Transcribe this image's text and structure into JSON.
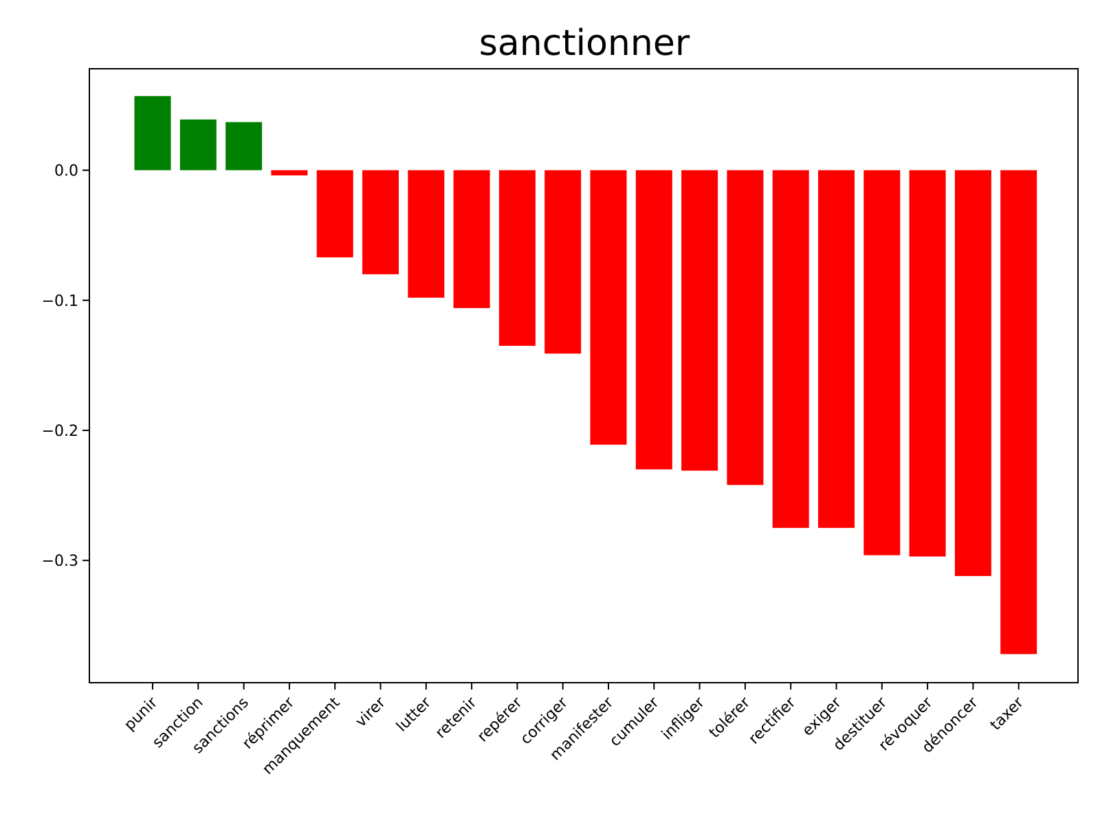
{
  "chart_data": {
    "type": "bar",
    "title": "sanctionner",
    "xlabel": "",
    "ylabel": "",
    "categories": [
      "punir",
      "sanction",
      "sanctions",
      "réprimer",
      "manquement",
      "virer",
      "lutter",
      "retenir",
      "repérer",
      "corriger",
      "manifester",
      "cumuler",
      "infliger",
      "tolérer",
      "rectifier",
      "exiger",
      "destituer",
      "révoquer",
      "dénoncer",
      "taxer"
    ],
    "values": [
      0.057,
      0.039,
      0.037,
      -0.004,
      -0.067,
      -0.08,
      -0.098,
      -0.106,
      -0.135,
      -0.141,
      -0.211,
      -0.23,
      -0.231,
      -0.242,
      -0.275,
      -0.275,
      -0.296,
      -0.297,
      -0.312,
      -0.372
    ],
    "ylim": [
      -0.394,
      0.078
    ],
    "yticks": [
      0.0,
      -0.1,
      -0.2,
      -0.3
    ],
    "ytick_labels": [
      "0.0",
      "−0.1",
      "−0.2",
      "−0.3"
    ],
    "colors": {
      "positive": "#008000",
      "negative": "#ff0000"
    },
    "grid": false,
    "legend": "none"
  }
}
